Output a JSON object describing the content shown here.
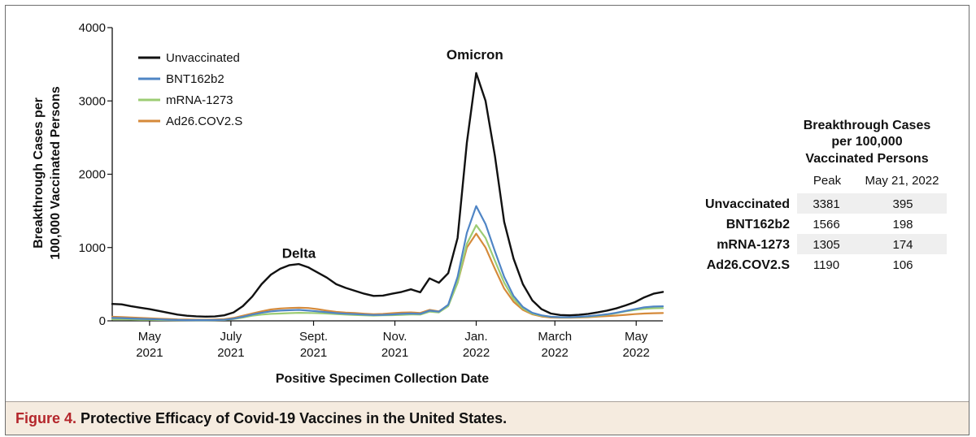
{
  "caption": {
    "label": "Figure 4.",
    "title": "Protective Efficacy of Covid-19 Vaccines in the United States."
  },
  "chart_data": {
    "type": "line",
    "title": "",
    "xlabel": "Positive Specimen Collection Date",
    "ylabel": [
      "Breakthrough Cases per",
      "100,000 Vaccinated Persons"
    ],
    "ylim": [
      0,
      4000
    ],
    "yticks": [
      0,
      1000,
      2000,
      3000,
      4000
    ],
    "ytick_labels": [
      "0",
      "1000",
      "2000",
      "3000",
      "4000"
    ],
    "xlim": [
      "2021-04-03",
      "2022-05-21"
    ],
    "xticks": [
      {
        "date": "2021-05-01",
        "month": "May",
        "year": "2021"
      },
      {
        "date": "2021-07-01",
        "month": "July",
        "year": "2021"
      },
      {
        "date": "2021-09-01",
        "month": "Sept.",
        "year": "2021"
      },
      {
        "date": "2021-11-01",
        "month": "Nov.",
        "year": "2021"
      },
      {
        "date": "2022-01-01",
        "month": "Jan.",
        "year": "2022"
      },
      {
        "date": "2022-03-01",
        "month": "March",
        "year": "2022"
      },
      {
        "date": "2022-05-01",
        "month": "May",
        "year": "2022"
      }
    ],
    "x": [
      "2021-04-03",
      "2021-04-10",
      "2021-04-17",
      "2021-04-24",
      "2021-05-01",
      "2021-05-08",
      "2021-05-15",
      "2021-05-22",
      "2021-05-29",
      "2021-06-05",
      "2021-06-12",
      "2021-06-19",
      "2021-06-26",
      "2021-07-03",
      "2021-07-10",
      "2021-07-17",
      "2021-07-24",
      "2021-07-31",
      "2021-08-07",
      "2021-08-14",
      "2021-08-21",
      "2021-08-28",
      "2021-09-04",
      "2021-09-11",
      "2021-09-18",
      "2021-09-25",
      "2021-10-02",
      "2021-10-09",
      "2021-10-16",
      "2021-10-23",
      "2021-10-30",
      "2021-11-06",
      "2021-11-13",
      "2021-11-20",
      "2021-11-27",
      "2021-12-04",
      "2021-12-11",
      "2021-12-18",
      "2021-12-25",
      "2022-01-01",
      "2022-01-08",
      "2022-01-15",
      "2022-01-22",
      "2022-01-29",
      "2022-02-05",
      "2022-02-12",
      "2022-02-19",
      "2022-02-26",
      "2022-03-05",
      "2022-03-12",
      "2022-03-19",
      "2022-03-26",
      "2022-04-02",
      "2022-04-09",
      "2022-04-16",
      "2022-04-23",
      "2022-04-30",
      "2022-05-07",
      "2022-05-14",
      "2022-05-21"
    ],
    "series": [
      {
        "name": "Unvaccinated",
        "color": "#111111",
        "values": [
          230,
          225,
          200,
          180,
          160,
          135,
          110,
          85,
          70,
          62,
          58,
          60,
          75,
          115,
          200,
          330,
          500,
          630,
          710,
          760,
          775,
          730,
          660,
          590,
          500,
          450,
          410,
          370,
          340,
          345,
          370,
          395,
          430,
          390,
          580,
          520,
          650,
          1130,
          2430,
          3381,
          3000,
          2250,
          1350,
          850,
          500,
          280,
          160,
          100,
          80,
          75,
          82,
          95,
          115,
          140,
          170,
          210,
          255,
          320,
          370,
          395
        ]
      },
      {
        "name": "BNT162b2",
        "color": "#4f85c5",
        "values": [
          40,
          38,
          32,
          28,
          24,
          20,
          16,
          12,
          10,
          10,
          10,
          11,
          14,
          30,
          55,
          85,
          110,
          130,
          140,
          145,
          150,
          140,
          130,
          118,
          105,
          98,
          92,
          85,
          80,
          82,
          88,
          95,
          100,
          95,
          140,
          125,
          220,
          600,
          1200,
          1566,
          1320,
          950,
          600,
          340,
          190,
          110,
          75,
          55,
          50,
          50,
          55,
          62,
          75,
          90,
          110,
          135,
          160,
          185,
          195,
          198
        ]
      },
      {
        "name": "mRNA-1273",
        "color": "#9ccc74",
        "values": [
          20,
          20,
          18,
          16,
          14,
          12,
          11,
          10,
          9,
          8,
          8,
          9,
          12,
          25,
          45,
          70,
          85,
          95,
          100,
          105,
          110,
          108,
          105,
          100,
          92,
          85,
          80,
          75,
          72,
          75,
          78,
          82,
          88,
          85,
          125,
          115,
          200,
          520,
          1050,
          1305,
          1130,
          820,
          520,
          300,
          170,
          100,
          70,
          55,
          48,
          48,
          52,
          58,
          70,
          85,
          105,
          130,
          150,
          165,
          172,
          174
        ]
      },
      {
        "name": "Ad26.COV2.S",
        "color": "#d58a3a",
        "values": [
          55,
          52,
          45,
          40,
          35,
          30,
          25,
          20,
          18,
          16,
          16,
          18,
          22,
          40,
          70,
          100,
          130,
          155,
          168,
          175,
          180,
          175,
          160,
          140,
          122,
          112,
          108,
          98,
          90,
          94,
          104,
          112,
          115,
          108,
          150,
          130,
          210,
          520,
          1000,
          1190,
          1000,
          710,
          440,
          260,
          150,
          90,
          60,
          45,
          42,
          42,
          45,
          50,
          58,
          65,
          72,
          82,
          92,
          100,
          104,
          106
        ]
      }
    ],
    "annotations": [
      {
        "text": "Delta",
        "x": "2021-08-21",
        "y": 860
      },
      {
        "text": "Omicron",
        "x": "2021-12-31",
        "y": 3570
      }
    ],
    "legend": {
      "placement": "top-left"
    },
    "grid": false,
    "table": {
      "title": [
        "Breakthrough Cases",
        "per 100,000",
        "Vaccinated Persons"
      ],
      "columns": [
        "Peak",
        "May 21, 2022"
      ],
      "rows": [
        {
          "label": "Unvaccinated",
          "peak": "3381",
          "may21": "395"
        },
        {
          "label": "BNT162b2",
          "peak": "1566",
          "may21": "198"
        },
        {
          "label": "mRNA-1273",
          "peak": "1305",
          "may21": "174"
        },
        {
          "label": "Ad26.COV2.S",
          "peak": "1190",
          "may21": "106"
        }
      ],
      "row_shade": "#efefef"
    }
  }
}
